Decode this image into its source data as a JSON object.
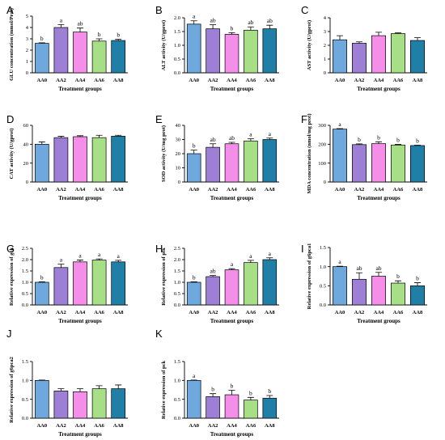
{
  "colors": [
    "#6fa8dc",
    "#9e7fd6",
    "#f58ee8",
    "#a6df85",
    "#1f7fa6"
  ],
  "chart_data": [
    {
      "id": "A",
      "type": "bar",
      "panel_label": "A",
      "categories": [
        "AA0",
        "AA2",
        "AA4",
        "AA6",
        "AA8"
      ],
      "values": [
        2.6,
        4.0,
        3.6,
        2.8,
        2.85
      ],
      "errors": [
        0.05,
        0.25,
        0.35,
        0.2,
        0.1
      ],
      "significance": [
        "b",
        "a",
        "ab",
        "b",
        "b"
      ],
      "xlabel": "Treatment groups",
      "ylabel": "GLU concentration (mmol/Prot)",
      "ylim": [
        0,
        5
      ],
      "yticks": [
        "0",
        "1",
        "2",
        "3",
        "4",
        "5"
      ]
    },
    {
      "id": "B",
      "type": "bar",
      "panel_label": "B",
      "categories": [
        "AA0",
        "AA2",
        "AA4",
        "AA6",
        "AA8"
      ],
      "values": [
        1.77,
        1.6,
        1.4,
        1.55,
        1.6
      ],
      "errors": [
        0.12,
        0.15,
        0.06,
        0.12,
        0.13
      ],
      "significance": [
        "a",
        "ab",
        "b",
        "ab",
        "ab"
      ],
      "xlabel": "Treatment groups",
      "ylabel": "ALT activity (U/gprot)",
      "ylim": [
        0,
        2.0
      ],
      "yticks": [
        "0.0",
        "0.5",
        "1.0",
        "1.5",
        "2.0"
      ]
    },
    {
      "id": "C",
      "type": "bar",
      "panel_label": "C",
      "categories": [
        "AA0",
        "AA2",
        "AA4",
        "AA6",
        "AA8"
      ],
      "values": [
        2.4,
        2.15,
        2.7,
        2.85,
        2.35
      ],
      "errors": [
        0.3,
        0.1,
        0.25,
        0.05,
        0.2
      ],
      "significance": [
        "",
        "",
        "",
        "",
        ""
      ],
      "xlabel": "Treatment groups",
      "ylabel": "AST activity (U/gprot)",
      "ylim": [
        0,
        4
      ],
      "yticks": [
        "0",
        "1",
        "2",
        "3",
        "4"
      ]
    },
    {
      "id": "D",
      "type": "bar",
      "panel_label": "D",
      "categories": [
        "AA0",
        "AA2",
        "AA4",
        "AA6",
        "AA8"
      ],
      "values": [
        40,
        47,
        48,
        47,
        48.5
      ],
      "errors": [
        2.5,
        1.5,
        1.0,
        2.5,
        1.0
      ],
      "significance": [
        "",
        "",
        "",
        "",
        ""
      ],
      "xlabel": "Treatment groups",
      "ylabel": "CAT activity (U/gprot)",
      "ylim": [
        0,
        60
      ],
      "yticks": [
        "0",
        "20",
        "40",
        "60"
      ]
    },
    {
      "id": "E",
      "type": "bar",
      "panel_label": "E",
      "categories": [
        "AA0",
        "AA2",
        "AA4",
        "AA6",
        "AA8"
      ],
      "values": [
        20,
        24.5,
        27,
        29,
        30
      ],
      "errors": [
        2.5,
        2.5,
        1.0,
        1.5,
        1.0
      ],
      "significance": [
        "b",
        "ab",
        "ab",
        "a",
        "a"
      ],
      "xlabel": "Treatment groups",
      "ylabel": "SOD activity (U/mg prot)",
      "ylim": [
        0,
        40
      ],
      "yticks": [
        "0",
        "10",
        "20",
        "30",
        "40"
      ]
    },
    {
      "id": "F",
      "type": "bar",
      "panel_label": "F",
      "categories": [
        "AA0",
        "AA2",
        "AA4",
        "AA6",
        "AA8"
      ],
      "values": [
        280,
        198,
        203,
        196,
        193
      ],
      "errors": [
        3,
        4,
        10,
        3,
        2
      ],
      "significance": [
        "a",
        "b",
        "b",
        "b",
        "b"
      ],
      "xlabel": "Treatment groups",
      "ylabel": "MDA concentration (nmol/mg prot)",
      "ylim": [
        0,
        300
      ],
      "yticks": [
        "0",
        "100",
        "200",
        "300"
      ]
    },
    {
      "id": "G",
      "type": "bar",
      "panel_label": "G",
      "categories": [
        "AA0",
        "AA2",
        "AA4",
        "AA6",
        "AA8"
      ],
      "values": [
        1.0,
        1.65,
        1.9,
        1.98,
        1.9
      ],
      "errors": [
        0.02,
        0.15,
        0.08,
        0.05,
        0.07
      ],
      "significance": [
        "b",
        "a",
        "a",
        "a",
        "a"
      ],
      "xlabel": "Treatment groups",
      "ylabel": "Relative expression of gck",
      "ylim": [
        0,
        2.5
      ],
      "yticks": [
        "0.0",
        "0.5",
        "1.0",
        "1.5",
        "2.0",
        "2.5"
      ]
    },
    {
      "id": "H",
      "type": "bar",
      "panel_label": "H",
      "categories": [
        "AA0",
        "AA2",
        "AA4",
        "AA6",
        "AA8"
      ],
      "values": [
        1.0,
        1.25,
        1.55,
        1.87,
        2.0
      ],
      "errors": [
        0.02,
        0.05,
        0.05,
        0.1,
        0.08
      ],
      "significance": [
        "b",
        "ab",
        "a",
        "a",
        "a"
      ],
      "xlabel": "Treatment groups",
      "ylabel": "Relative expression of pfk",
      "ylim": [
        0,
        2.5
      ],
      "yticks": [
        "0.0",
        "0.5",
        "1.0",
        "1.5",
        "2.0",
        "2.5"
      ]
    },
    {
      "id": "I",
      "type": "bar",
      "panel_label": "I",
      "categories": [
        "AA0",
        "AA2",
        "AA4",
        "AA6",
        "AA8"
      ],
      "values": [
        1.0,
        0.67,
        0.75,
        0.57,
        0.5
      ],
      "errors": [
        0.01,
        0.17,
        0.1,
        0.06,
        0.08
      ],
      "significance": [
        "a",
        "ab",
        "ab",
        "b",
        "b"
      ],
      "xlabel": "Treatment groups",
      "ylabel": "Relative expression of g6pca1",
      "ylim": [
        0,
        1.5
      ],
      "yticks": [
        "0.0",
        "0.5",
        "1.0",
        "1.5"
      ]
    },
    {
      "id": "J",
      "type": "bar",
      "panel_label": "J",
      "categories": [
        "AA0",
        "AA2",
        "AA4",
        "AA6",
        "AA8"
      ],
      "values": [
        1.0,
        0.72,
        0.7,
        0.78,
        0.78
      ],
      "errors": [
        0.01,
        0.06,
        0.08,
        0.08,
        0.1
      ],
      "significance": [
        "",
        "",
        "",
        "",
        ""
      ],
      "xlabel": "Treatment groups",
      "ylabel": "Relative expression of g6pca2",
      "ylim": [
        0,
        1.5
      ],
      "yticks": [
        "0.0",
        "0.5",
        "1.0",
        "1.5"
      ]
    },
    {
      "id": "K",
      "type": "bar",
      "panel_label": "K",
      "categories": [
        "AA0",
        "AA2",
        "AA4",
        "AA6",
        "AA8"
      ],
      "values": [
        1.0,
        0.57,
        0.62,
        0.48,
        0.53
      ],
      "errors": [
        0.01,
        0.08,
        0.12,
        0.07,
        0.07
      ],
      "significance": [
        "a",
        "b",
        "b",
        "b",
        "b"
      ],
      "xlabel": "Treatment groups",
      "ylabel": "Relative expression of pck",
      "ylim": [
        0,
        1.5
      ],
      "yticks": [
        "0.0",
        "0.5",
        "1.0",
        "1.5"
      ]
    }
  ]
}
